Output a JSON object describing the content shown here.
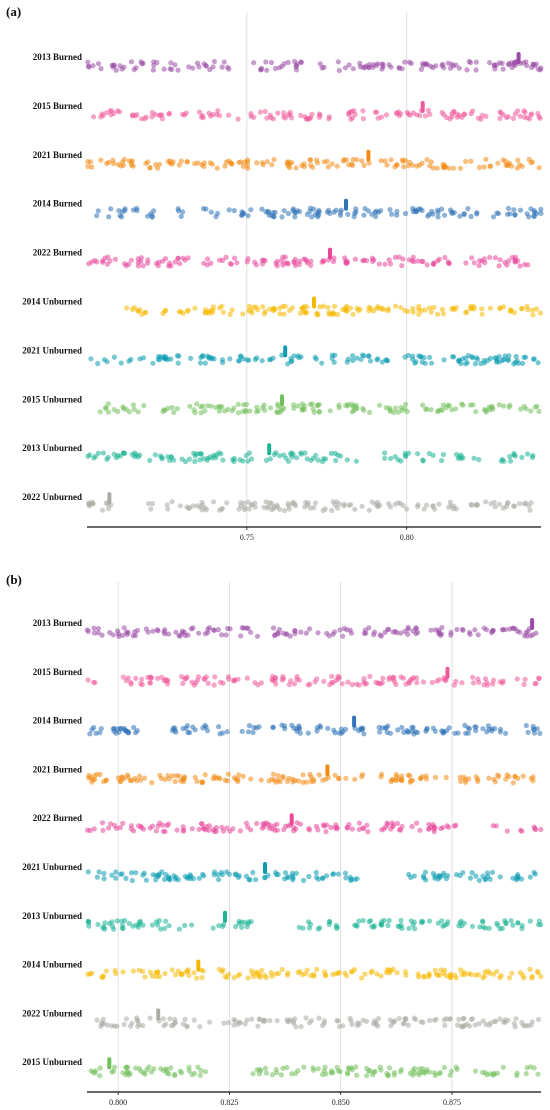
{
  "chart_data": [
    {
      "type": "scatter",
      "panel_label": "(a)",
      "xlim": [
        0.7,
        0.842
      ],
      "x_ticks": [
        "0.75",
        "0.80"
      ],
      "x_tick_values": [
        0.75,
        0.8
      ],
      "grid": "vertical",
      "title": "",
      "xlabel": "",
      "ylabel": "",
      "categories": [
        "2013 Burned",
        "2015 Burned",
        "2021 Burned",
        "2014 Burned",
        "2022 Burned",
        "2014  Unburned",
        "2021  Unburned",
        "2015  Unburned",
        "2013  Unburned",
        "2022  Unburned"
      ],
      "markers": [
        0.835,
        0.805,
        0.788,
        0.781,
        0.776,
        0.771,
        0.762,
        0.761,
        0.757,
        0.707
      ],
      "colors": [
        "#9b4aa6",
        "#ef5a9a",
        "#f28a14",
        "#2f73b8",
        "#e8479a",
        "#f5b800",
        "#0a9bb0",
        "#72c05b",
        "#1cb394",
        "#a9aca4"
      ],
      "point_ranges": [
        [
          0.7,
          0.842
        ],
        [
          0.7,
          0.842
        ],
        [
          0.7,
          0.842
        ],
        [
          0.703,
          0.842
        ],
        [
          0.7,
          0.842
        ],
        [
          0.712,
          0.842
        ],
        [
          0.7,
          0.842
        ],
        [
          0.7,
          0.842
        ],
        [
          0.7,
          0.842
        ],
        [
          0.7,
          0.842
        ]
      ],
      "gaps": [
        [
          [
            0.745,
            0.751
          ]
        ],
        [
          [
            0.776,
            0.781
          ]
        ],
        [],
        [
          [
            0.731,
            0.734
          ],
          [
            0.822,
            0.826
          ]
        ],
        [
          [
            0.838,
            0.842
          ]
        ],
        [
          [
            0.72,
            0.723
          ]
        ],
        [
          [
            0.768,
            0.771
          ],
          [
            0.796,
            0.799
          ]
        ],
        [
          [
            0.774,
            0.776
          ]
        ],
        [
          [
            0.752,
            0.756
          ],
          [
            0.785,
            0.791
          ]
        ],
        [
          [
            0.708,
            0.719
          ],
          [
            0.745,
            0.747
          ]
        ]
      ]
    },
    {
      "type": "scatter",
      "panel_label": "(b)",
      "xlim": [
        0.793,
        0.895
      ],
      "x_ticks": [
        "0.800",
        "0.825",
        "0.850",
        "0.875"
      ],
      "x_tick_values": [
        0.8,
        0.825,
        0.85,
        0.875
      ],
      "grid": "vertical",
      "title": "",
      "xlabel": "",
      "ylabel": "",
      "categories": [
        "2013 Burned",
        "2015 Burned",
        "2014 Burned",
        "2021 Burned",
        "2022 Burned",
        "2021  Unburned",
        "2013  Unburned",
        "2014  Unburned",
        "2022  Unburned",
        "2015  Unburned"
      ],
      "markers": [
        0.893,
        0.874,
        0.853,
        0.847,
        0.839,
        0.833,
        0.824,
        0.818,
        0.809,
        0.798
      ],
      "colors": [
        "#9b4aa6",
        "#ef5a9a",
        "#2f73b8",
        "#f28a14",
        "#e8479a",
        "#0a9bb0",
        "#1cb394",
        "#f5b800",
        "#a9aca4",
        "#72c05b"
      ],
      "point_ranges": [
        [
          0.793,
          0.895
        ],
        [
          0.793,
          0.895
        ],
        [
          0.793,
          0.895
        ],
        [
          0.793,
          0.895
        ],
        [
          0.793,
          0.895
        ],
        [
          0.793,
          0.895
        ],
        [
          0.793,
          0.895
        ],
        [
          0.793,
          0.895
        ],
        [
          0.793,
          0.895
        ],
        [
          0.793,
          0.895
        ]
      ],
      "gaps": [
        [
          [
            0.81,
            0.81
          ]
        ],
        [
          [
            0.797,
            0.801
          ]
        ],
        [
          [
            0.806,
            0.812
          ]
        ],
        [],
        [
          [
            0.876,
            0.884
          ]
        ],
        [
          [
            0.82,
            0.82
          ],
          [
            0.855,
            0.865
          ]
        ],
        [
          [
            0.83,
            0.84
          ]
        ],
        [],
        [
          [
            0.806,
            0.806
          ]
        ],
        [
          [
            0.82,
            0.83
          ]
        ]
      ]
    }
  ]
}
